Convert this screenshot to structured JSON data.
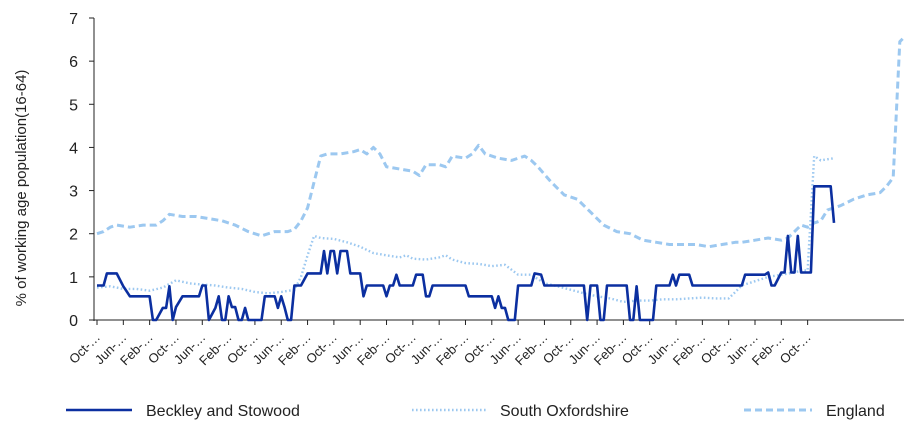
{
  "chart_data": {
    "type": "line",
    "title": "",
    "xlabel": "",
    "ylabel": "% of working age population(16-64)",
    "ylim": [
      0,
      7
    ],
    "yticks": [
      0,
      1,
      2,
      3,
      4,
      5,
      6,
      7
    ],
    "grid": false,
    "legend_position": "bottom",
    "x_tick_labels": [
      "Oct-…",
      "Jun-…",
      "Feb-…",
      "Oct-…",
      "Jun-…",
      "Feb-…",
      "Oct-…",
      "Jun-…",
      "Feb-…",
      "Oct-…",
      "Jun-…",
      "Feb-…",
      "Oct-…",
      "Jun-…",
      "Feb-…",
      "Oct-…",
      "Jun-…",
      "Feb-…",
      "Oct-…",
      "Jun-…",
      "Feb-…",
      "Oct-…",
      "Jun-…",
      "Feb-…",
      "Oct-…",
      "Jun-…",
      "Feb-…",
      "Oct-…"
    ],
    "x_tick_positions": [
      0,
      8,
      16,
      24,
      32,
      40,
      48,
      56,
      64,
      72,
      80,
      88,
      96,
      104,
      112,
      120,
      128,
      136,
      144,
      152,
      160,
      168,
      176,
      184,
      192,
      200,
      208,
      216
    ],
    "x_count": 220,
    "series": [
      {
        "name": "Beckley and Stowood",
        "color": "#0b2fa0",
        "style": "solid",
        "points": [
          [
            0,
            0.8
          ],
          [
            2,
            0.8
          ],
          [
            3,
            1.08
          ],
          [
            6,
            1.08
          ],
          [
            8,
            0.78
          ],
          [
            10,
            0.55
          ],
          [
            16,
            0.55
          ],
          [
            17,
            0.0
          ],
          [
            18,
            0.0
          ],
          [
            20,
            0.28
          ],
          [
            21,
            0.28
          ],
          [
            22,
            0.78
          ],
          [
            23,
            0.0
          ],
          [
            24,
            0.3
          ],
          [
            26,
            0.55
          ],
          [
            31,
            0.55
          ],
          [
            32,
            0.8
          ],
          [
            33,
            0.8
          ],
          [
            34,
            0.0
          ],
          [
            36,
            0.28
          ],
          [
            37,
            0.55
          ],
          [
            38,
            0.0
          ],
          [
            39,
            0.0
          ],
          [
            40,
            0.55
          ],
          [
            41,
            0.3
          ],
          [
            42,
            0.3
          ],
          [
            43,
            0.0
          ],
          [
            44,
            0.0
          ],
          [
            45,
            0.28
          ],
          [
            46,
            0.0
          ],
          [
            50,
            0.0
          ],
          [
            51,
            0.55
          ],
          [
            54,
            0.55
          ],
          [
            55,
            0.28
          ],
          [
            56,
            0.55
          ],
          [
            57,
            0.3
          ],
          [
            58,
            0.0
          ],
          [
            59,
            0.0
          ],
          [
            60,
            0.8
          ],
          [
            62,
            0.8
          ],
          [
            64,
            1.08
          ],
          [
            68,
            1.08
          ],
          [
            69,
            1.6
          ],
          [
            70,
            1.08
          ],
          [
            71,
            1.6
          ],
          [
            72,
            1.6
          ],
          [
            73,
            1.08
          ],
          [
            74,
            1.6
          ],
          [
            76,
            1.6
          ],
          [
            77,
            1.08
          ],
          [
            80,
            1.08
          ],
          [
            81,
            0.55
          ],
          [
            82,
            0.8
          ],
          [
            87,
            0.8
          ],
          [
            88,
            0.55
          ],
          [
            89,
            0.8
          ],
          [
            90,
            0.8
          ],
          [
            91,
            1.05
          ],
          [
            92,
            0.8
          ],
          [
            96,
            0.8
          ],
          [
            97,
            1.05
          ],
          [
            99,
            1.05
          ],
          [
            100,
            0.55
          ],
          [
            101,
            0.55
          ],
          [
            102,
            0.8
          ],
          [
            104,
            0.8
          ],
          [
            105,
            0.8
          ],
          [
            106,
            0.8
          ],
          [
            112,
            0.8
          ],
          [
            113,
            0.55
          ],
          [
            120,
            0.55
          ],
          [
            121,
            0.28
          ],
          [
            122,
            0.55
          ],
          [
            123,
            0.28
          ],
          [
            124,
            0.28
          ],
          [
            125,
            0.0
          ],
          [
            127,
            0.0
          ],
          [
            128,
            0.8
          ],
          [
            132,
            0.8
          ],
          [
            133,
            1.08
          ],
          [
            135,
            1.05
          ],
          [
            136,
            0.8
          ],
          [
            148,
            0.8
          ],
          [
            149,
            0.0
          ],
          [
            150,
            0.8
          ],
          [
            152,
            0.8
          ],
          [
            153,
            0.0
          ],
          [
            154,
            0.0
          ],
          [
            155,
            0.8
          ],
          [
            161,
            0.8
          ],
          [
            162,
            0.0
          ],
          [
            163,
            0.0
          ],
          [
            164,
            0.78
          ],
          [
            165,
            0.0
          ],
          [
            166,
            0.0
          ],
          [
            169,
            0.0
          ],
          [
            170,
            0.8
          ],
          [
            174,
            0.8
          ],
          [
            175,
            1.05
          ],
          [
            176,
            0.8
          ],
          [
            177,
            1.05
          ],
          [
            180,
            1.05
          ],
          [
            181,
            0.8
          ],
          [
            196,
            0.8
          ],
          [
            197,
            1.05
          ],
          [
            203,
            1.05
          ],
          [
            204,
            1.1
          ],
          [
            205,
            0.8
          ],
          [
            206,
            0.8
          ],
          [
            208,
            1.1
          ],
          [
            209,
            1.1
          ],
          [
            210,
            1.95
          ],
          [
            211,
            1.1
          ],
          [
            212,
            1.1
          ],
          [
            213,
            1.95
          ],
          [
            214,
            1.1
          ],
          [
            215,
            1.1
          ],
          [
            217,
            1.1
          ],
          [
            218,
            3.1
          ],
          [
            223,
            3.1
          ],
          [
            224,
            2.25
          ]
        ]
      },
      {
        "name": "South Oxfordshire",
        "color": "#9cc8f0",
        "style": "dotted",
        "points": [
          [
            0,
            0.75
          ],
          [
            4,
            0.78
          ],
          [
            8,
            0.72
          ],
          [
            12,
            0.72
          ],
          [
            16,
            0.68
          ],
          [
            20,
            0.75
          ],
          [
            24,
            0.92
          ],
          [
            28,
            0.85
          ],
          [
            32,
            0.82
          ],
          [
            36,
            0.8
          ],
          [
            40,
            0.75
          ],
          [
            44,
            0.72
          ],
          [
            48,
            0.65
          ],
          [
            52,
            0.62
          ],
          [
            56,
            0.65
          ],
          [
            60,
            0.7
          ],
          [
            62,
            1.0
          ],
          [
            64,
            1.5
          ],
          [
            66,
            1.95
          ],
          [
            68,
            1.9
          ],
          [
            72,
            1.88
          ],
          [
            76,
            1.8
          ],
          [
            78,
            1.75
          ],
          [
            80,
            1.7
          ],
          [
            84,
            1.55
          ],
          [
            88,
            1.5
          ],
          [
            92,
            1.45
          ],
          [
            94,
            1.5
          ],
          [
            96,
            1.42
          ],
          [
            100,
            1.4
          ],
          [
            104,
            1.45
          ],
          [
            106,
            1.5
          ],
          [
            108,
            1.4
          ],
          [
            112,
            1.32
          ],
          [
            116,
            1.3
          ],
          [
            120,
            1.25
          ],
          [
            124,
            1.28
          ],
          [
            128,
            1.05
          ],
          [
            132,
            1.05
          ],
          [
            136,
            0.85
          ],
          [
            140,
            0.78
          ],
          [
            144,
            0.7
          ],
          [
            148,
            0.62
          ],
          [
            152,
            0.55
          ],
          [
            156,
            0.5
          ],
          [
            160,
            0.42
          ],
          [
            164,
            0.45
          ],
          [
            168,
            0.45
          ],
          [
            172,
            0.48
          ],
          [
            176,
            0.48
          ],
          [
            180,
            0.5
          ],
          [
            184,
            0.52
          ],
          [
            188,
            0.5
          ],
          [
            192,
            0.5
          ],
          [
            194,
            0.65
          ],
          [
            196,
            0.8
          ],
          [
            200,
            0.9
          ],
          [
            204,
            1.0
          ],
          [
            208,
            1.05
          ],
          [
            212,
            1.1
          ],
          [
            214,
            1.15
          ],
          [
            216,
            1.15
          ],
          [
            218,
            3.8
          ],
          [
            220,
            3.7
          ],
          [
            224,
            3.75
          ]
        ]
      },
      {
        "name": "England",
        "color": "#9cc8f0",
        "style": "dashed",
        "points": [
          [
            0,
            2.0
          ],
          [
            2,
            2.05
          ],
          [
            4,
            2.15
          ],
          [
            6,
            2.2
          ],
          [
            10,
            2.15
          ],
          [
            14,
            2.2
          ],
          [
            18,
            2.2
          ],
          [
            20,
            2.3
          ],
          [
            22,
            2.45
          ],
          [
            26,
            2.4
          ],
          [
            30,
            2.4
          ],
          [
            34,
            2.35
          ],
          [
            38,
            2.3
          ],
          [
            42,
            2.2
          ],
          [
            46,
            2.05
          ],
          [
            50,
            1.95
          ],
          [
            54,
            2.05
          ],
          [
            58,
            2.05
          ],
          [
            60,
            2.1
          ],
          [
            62,
            2.3
          ],
          [
            64,
            2.6
          ],
          [
            66,
            3.2
          ],
          [
            68,
            3.8
          ],
          [
            70,
            3.85
          ],
          [
            74,
            3.85
          ],
          [
            78,
            3.9
          ],
          [
            80,
            3.95
          ],
          [
            82,
            3.85
          ],
          [
            84,
            4.0
          ],
          [
            86,
            3.85
          ],
          [
            88,
            3.55
          ],
          [
            92,
            3.5
          ],
          [
            96,
            3.45
          ],
          [
            98,
            3.35
          ],
          [
            100,
            3.6
          ],
          [
            104,
            3.6
          ],
          [
            106,
            3.55
          ],
          [
            108,
            3.8
          ],
          [
            112,
            3.75
          ],
          [
            114,
            3.85
          ],
          [
            116,
            4.05
          ],
          [
            118,
            3.85
          ],
          [
            122,
            3.75
          ],
          [
            126,
            3.7
          ],
          [
            130,
            3.8
          ],
          [
            132,
            3.7
          ],
          [
            134,
            3.55
          ],
          [
            138,
            3.2
          ],
          [
            142,
            2.9
          ],
          [
            146,
            2.8
          ],
          [
            150,
            2.5
          ],
          [
            154,
            2.2
          ],
          [
            158,
            2.05
          ],
          [
            162,
            2.0
          ],
          [
            166,
            1.85
          ],
          [
            170,
            1.8
          ],
          [
            174,
            1.75
          ],
          [
            178,
            1.75
          ],
          [
            182,
            1.75
          ],
          [
            186,
            1.7
          ],
          [
            190,
            1.75
          ],
          [
            194,
            1.8
          ],
          [
            196,
            1.8
          ],
          [
            200,
            1.85
          ],
          [
            204,
            1.9
          ],
          [
            208,
            1.85
          ],
          [
            210,
            1.9
          ],
          [
            212,
            2.05
          ],
          [
            214,
            2.2
          ],
          [
            216,
            2.15
          ],
          [
            218,
            2.25
          ],
          [
            220,
            2.3
          ],
          [
            222,
            2.55
          ],
          [
            226,
            2.65
          ],
          [
            230,
            2.8
          ],
          [
            234,
            2.9
          ],
          [
            238,
            2.95
          ],
          [
            240,
            3.1
          ],
          [
            242,
            3.3
          ],
          [
            244,
            6.45
          ],
          [
            246,
            6.55
          ]
        ]
      }
    ]
  }
}
